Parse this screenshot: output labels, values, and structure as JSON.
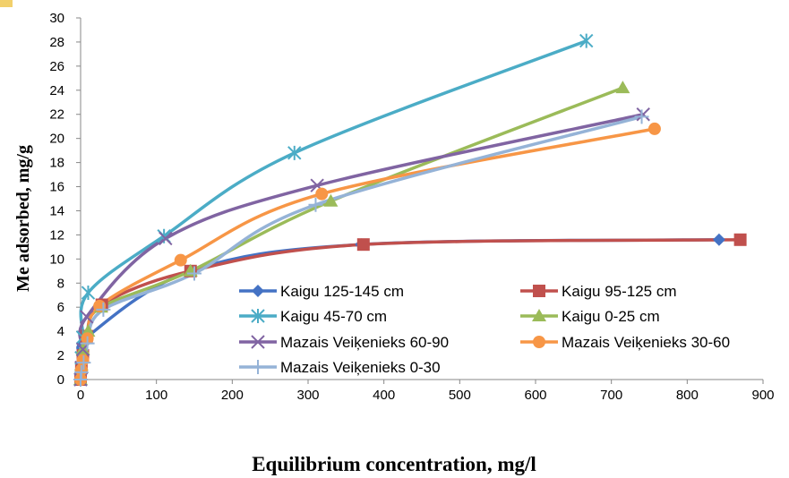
{
  "chart_data": {
    "type": "scatter",
    "xlabel": "Equilibrium concentration, mg/l",
    "ylabel": "Me adsorbed, mg/g",
    "xlim": [
      0,
      900
    ],
    "ylim": [
      0,
      30
    ],
    "xticks": [
      "0",
      "100",
      "200",
      "300",
      "400",
      "500",
      "600",
      "700",
      "800",
      "900"
    ],
    "yticks": [
      "0",
      "2",
      "4",
      "6",
      "8",
      "10",
      "12",
      "14",
      "16",
      "18",
      "20",
      "22",
      "24",
      "26",
      "28",
      "30"
    ],
    "grid": false,
    "legend_position": "lower-right",
    "series": [
      {
        "name": "Kaigu 125-145 cm",
        "color": "#4472c4",
        "marker": "diamond",
        "x": [
          0,
          1,
          3,
          8,
          145,
          370,
          842
        ],
        "y": [
          0,
          1.0,
          2.0,
          3.5,
          9.0,
          11.2,
          11.6
        ]
      },
      {
        "name": "Kaigu 95-125 cm",
        "color": "#c0504d",
        "marker": "square",
        "x": [
          0,
          1,
          3,
          8,
          28,
          145,
          373,
          870
        ],
        "y": [
          0,
          1.0,
          2.0,
          3.6,
          6.2,
          9.0,
          11.2,
          11.6
        ]
      },
      {
        "name": "Kaigu 45-70 cm",
        "color": "#4bacc6",
        "marker": "asterisk",
        "x": [
          0,
          1,
          3,
          10,
          110,
          282,
          667
        ],
        "y": [
          0,
          1.8,
          3.5,
          7.2,
          11.9,
          18.8,
          28.1
        ]
      },
      {
        "name": "Kaigu 0-25 cm",
        "color": "#9bbb59",
        "marker": "triangle",
        "x": [
          0,
          1,
          3,
          10,
          27,
          145,
          330,
          715
        ],
        "y": [
          0,
          1.2,
          2.5,
          4.0,
          6.0,
          9.0,
          14.8,
          24.2
        ]
      },
      {
        "name": "Mazais Veiķenieks  60-90",
        "color": "#8064a2",
        "marker": "x",
        "x": [
          0,
          1,
          3,
          8,
          112,
          312,
          742
        ],
        "y": [
          0,
          1.0,
          2.5,
          5.2,
          11.7,
          16.1,
          22.0
        ]
      },
      {
        "name": "Mazais Veiķenieks  30-60",
        "color": "#f79646",
        "marker": "circle",
        "x": [
          0,
          1,
          3,
          9,
          25,
          132,
          318,
          757
        ],
        "y": [
          0,
          0.8,
          1.6,
          3.4,
          6.1,
          9.9,
          15.4,
          20.8
        ]
      },
      {
        "name": "Mazais Veiķenieks  0-30",
        "color": "#95b3d7",
        "marker": "plus",
        "x": [
          0,
          1,
          4,
          9,
          30,
          150,
          310,
          740
        ],
        "y": [
          0,
          0.6,
          1.4,
          3.0,
          5.8,
          8.8,
          14.5,
          21.8
        ]
      }
    ]
  }
}
